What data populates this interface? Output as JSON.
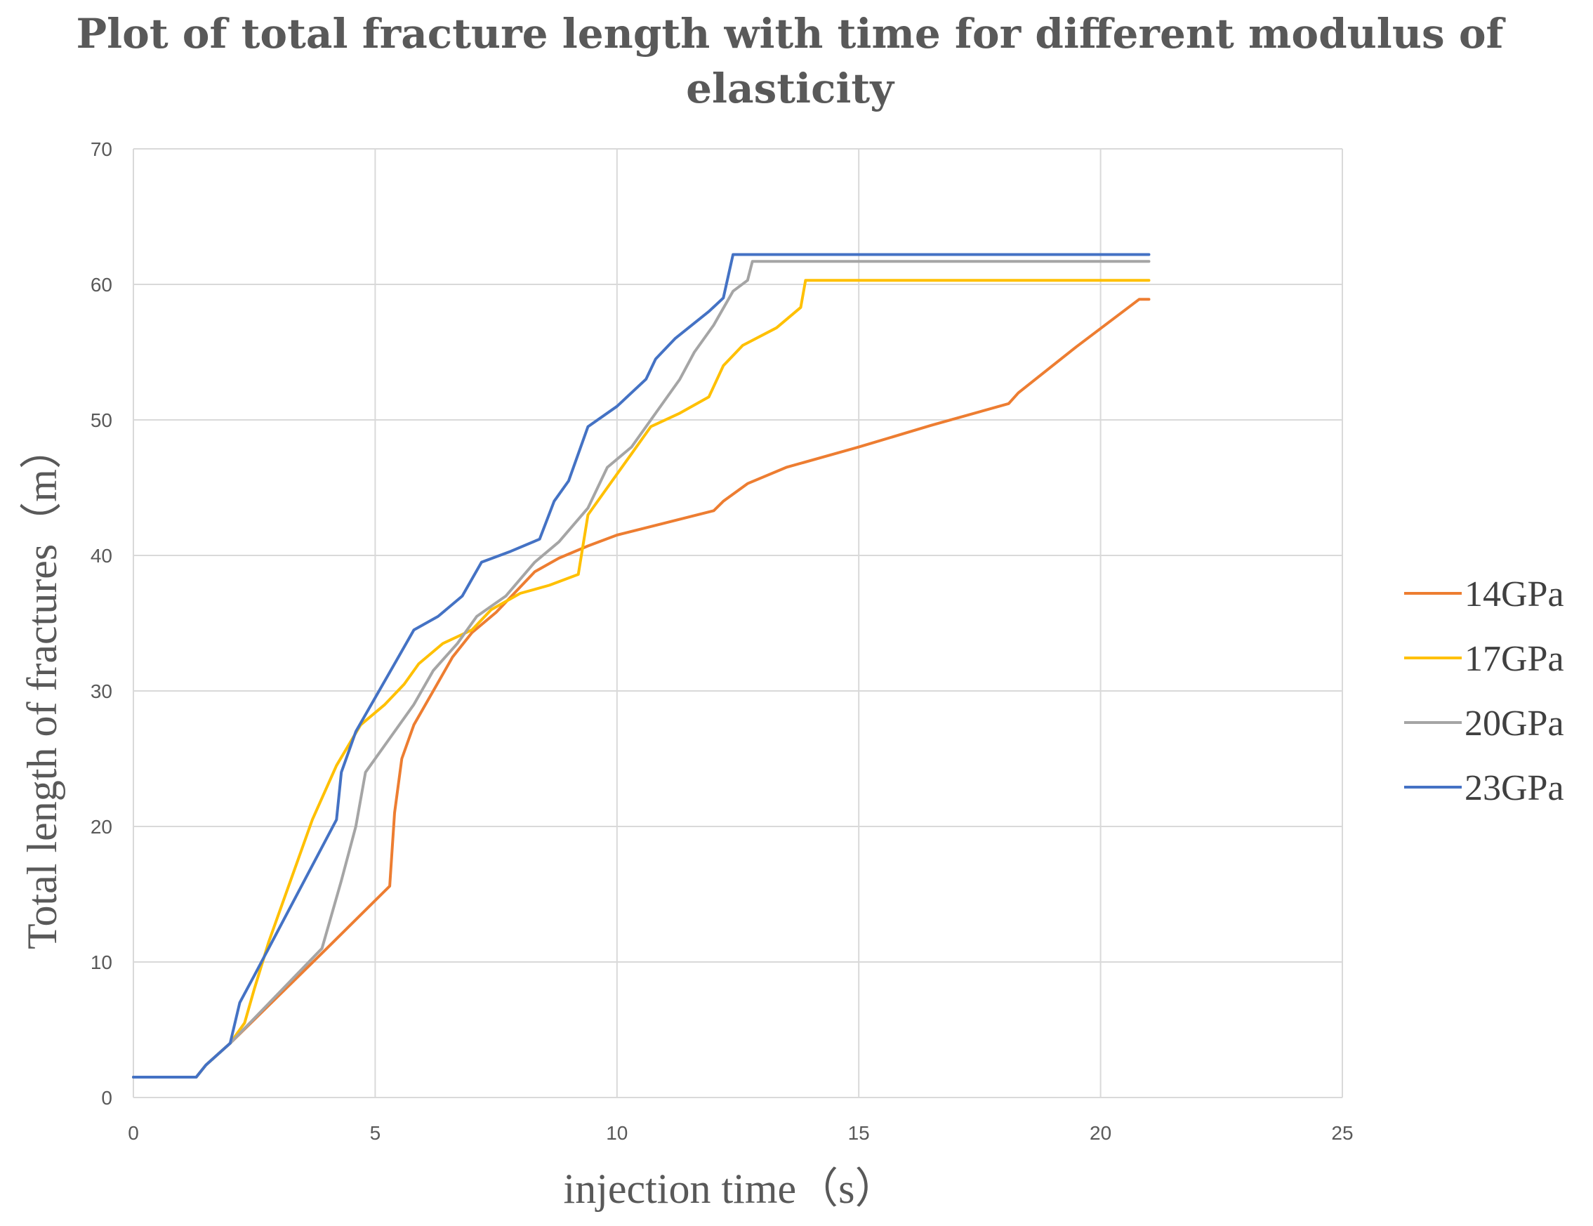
{
  "chart_data": {
    "type": "line",
    "title_lines": [
      "Plot of total fracture length with time for different modulus of",
      "elasticity"
    ],
    "xlabel": "injection time（s）",
    "ylabel": "Total length of fractures（m）",
    "xlim": [
      0,
      25
    ],
    "ylim": [
      0,
      70
    ],
    "xticks": [
      0,
      5,
      10,
      15,
      20,
      25
    ],
    "yticks": [
      0,
      10,
      20,
      30,
      40,
      50,
      60,
      70
    ],
    "grid": true,
    "legend_position": "right",
    "series": [
      {
        "name": "14GPa",
        "color": "#ED7D31",
        "points": [
          [
            0,
            1.5
          ],
          [
            1.3,
            1.5
          ],
          [
            1.5,
            2.4
          ],
          [
            2.0,
            4.0
          ],
          [
            4.0,
            11.0
          ],
          [
            5.3,
            15.6
          ],
          [
            5.4,
            21.0
          ],
          [
            5.55,
            25.0
          ],
          [
            5.8,
            27.5
          ],
          [
            6.2,
            30.0
          ],
          [
            6.6,
            32.5
          ],
          [
            7.0,
            34.3
          ],
          [
            7.5,
            35.8
          ],
          [
            7.9,
            37.3
          ],
          [
            8.3,
            38.8
          ],
          [
            8.8,
            39.8
          ],
          [
            9.4,
            40.7
          ],
          [
            10.0,
            41.5
          ],
          [
            11.0,
            42.4
          ],
          [
            12.0,
            43.3
          ],
          [
            12.2,
            44.0
          ],
          [
            12.7,
            45.3
          ],
          [
            13.5,
            46.5
          ],
          [
            15.0,
            48.0
          ],
          [
            16.5,
            49.6
          ],
          [
            18.1,
            51.2
          ],
          [
            18.3,
            52.0
          ],
          [
            19.5,
            55.4
          ],
          [
            20.8,
            58.9
          ],
          [
            21.0,
            58.9
          ]
        ]
      },
      {
        "name": "17GPa",
        "color": "#FFC000",
        "points": [
          [
            0,
            1.5
          ],
          [
            1.3,
            1.5
          ],
          [
            1.5,
            2.4
          ],
          [
            2.0,
            4.0
          ],
          [
            2.3,
            5.5
          ],
          [
            2.5,
            8.0
          ],
          [
            2.8,
            11.5
          ],
          [
            3.2,
            15.5
          ],
          [
            3.7,
            20.5
          ],
          [
            4.2,
            24.5
          ],
          [
            4.7,
            27.5
          ],
          [
            5.2,
            29.0
          ],
          [
            5.6,
            30.5
          ],
          [
            5.9,
            32.0
          ],
          [
            6.4,
            33.5
          ],
          [
            7.0,
            34.5
          ],
          [
            7.4,
            36.0
          ],
          [
            8.0,
            37.2
          ],
          [
            8.6,
            37.8
          ],
          [
            9.2,
            38.6
          ],
          [
            9.4,
            43.0
          ],
          [
            9.9,
            45.5
          ],
          [
            10.3,
            47.5
          ],
          [
            10.7,
            49.5
          ],
          [
            11.3,
            50.5
          ],
          [
            11.9,
            51.7
          ],
          [
            12.2,
            54.0
          ],
          [
            12.6,
            55.5
          ],
          [
            13.3,
            56.8
          ],
          [
            13.8,
            58.3
          ],
          [
            13.9,
            60.3
          ],
          [
            21.0,
            60.3
          ]
        ]
      },
      {
        "name": "20GPa",
        "color": "#A5A5A5",
        "points": [
          [
            0,
            1.5
          ],
          [
            1.3,
            1.5
          ],
          [
            1.5,
            2.4
          ],
          [
            2.0,
            4.0
          ],
          [
            3.9,
            11.0
          ],
          [
            4.3,
            16.0
          ],
          [
            4.6,
            20.0
          ],
          [
            4.8,
            24.0
          ],
          [
            5.3,
            26.5
          ],
          [
            5.8,
            29.0
          ],
          [
            6.2,
            31.5
          ],
          [
            6.7,
            33.5
          ],
          [
            7.1,
            35.5
          ],
          [
            7.7,
            37.0
          ],
          [
            8.3,
            39.5
          ],
          [
            8.8,
            41.0
          ],
          [
            9.4,
            43.5
          ],
          [
            9.8,
            46.5
          ],
          [
            10.3,
            48.0
          ],
          [
            10.8,
            50.5
          ],
          [
            11.3,
            53.0
          ],
          [
            11.6,
            55.0
          ],
          [
            12.0,
            57.0
          ],
          [
            12.4,
            59.5
          ],
          [
            12.7,
            60.3
          ],
          [
            12.8,
            61.7
          ],
          [
            21.0,
            61.7
          ]
        ]
      },
      {
        "name": "23GPa",
        "color": "#4472C4",
        "points": [
          [
            0,
            1.5
          ],
          [
            1.3,
            1.5
          ],
          [
            1.5,
            2.4
          ],
          [
            2.0,
            4.0
          ],
          [
            2.2,
            7.0
          ],
          [
            2.5,
            9.0
          ],
          [
            4.2,
            20.5
          ],
          [
            4.3,
            24.0
          ],
          [
            4.6,
            27.0
          ],
          [
            5.0,
            29.5
          ],
          [
            5.4,
            32.0
          ],
          [
            5.8,
            34.5
          ],
          [
            6.3,
            35.5
          ],
          [
            6.8,
            37.0
          ],
          [
            7.2,
            39.5
          ],
          [
            7.8,
            40.3
          ],
          [
            8.4,
            41.2
          ],
          [
            8.7,
            44.0
          ],
          [
            9.0,
            45.5
          ],
          [
            9.4,
            49.5
          ],
          [
            10.0,
            51.0
          ],
          [
            10.6,
            53.0
          ],
          [
            10.8,
            54.5
          ],
          [
            11.2,
            56.0
          ],
          [
            11.9,
            58.0
          ],
          [
            12.2,
            59.0
          ],
          [
            12.4,
            62.2
          ],
          [
            21.0,
            62.2
          ]
        ]
      }
    ]
  }
}
